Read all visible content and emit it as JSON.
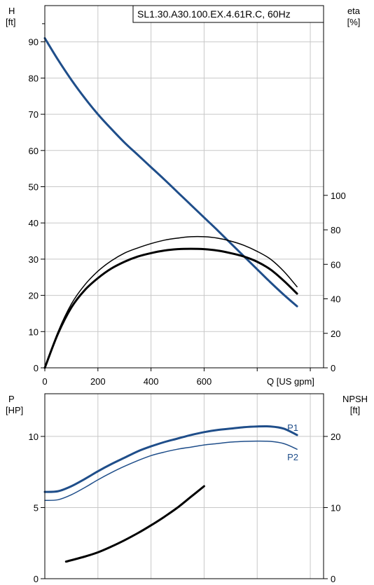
{
  "chart_data": [
    {
      "type": "line",
      "title": "SL1.30.A30.100.EX.4.61R.C, 60Hz",
      "xlabel": "Q [US gpm]",
      "ylabel_left": [
        "H",
        "[ft]"
      ],
      "ylabel_right": [
        "eta",
        "[%]"
      ],
      "xlim": [
        0,
        1050
      ],
      "ylim_left": [
        0,
        100
      ],
      "ylim_right": [
        0,
        210
      ],
      "x_ticks": [
        0,
        200,
        400,
        600
      ],
      "x_tick_labels": [
        "0",
        "200",
        "400",
        "600"
      ],
      "y_ticks_left": [
        0,
        10,
        20,
        30,
        40,
        50,
        60,
        70,
        80,
        90
      ],
      "y_ticks_right": [
        0,
        20,
        40,
        60,
        80,
        100
      ],
      "grid": true,
      "series": [
        {
          "axis": "left",
          "color": "#1f4e8a",
          "width": 3,
          "x": [
            0,
            50,
            100,
            150,
            200,
            250,
            300,
            350,
            400,
            450,
            500,
            550,
            600,
            650,
            700,
            750,
            800,
            850,
            900,
            950
          ],
          "y": [
            91,
            85,
            79.5,
            74.5,
            70,
            66,
            62.2,
            58.8,
            55.4,
            52,
            48.5,
            45,
            41.5,
            38,
            34.4,
            30.8,
            27.2,
            23.6,
            20.2,
            17
          ]
        },
        {
          "axis": "right",
          "color": "#000000",
          "width": 1.5,
          "x": [
            0,
            50,
            100,
            150,
            200,
            250,
            300,
            350,
            400,
            450,
            500,
            550,
            600,
            650,
            700,
            750,
            800,
            850,
            900,
            950
          ],
          "y": [
            0,
            21,
            37,
            48,
            56,
            62,
            66.5,
            69.5,
            72,
            74,
            75.2,
            76,
            76,
            75.2,
            73.5,
            71,
            67.5,
            63,
            56,
            47
          ]
        },
        {
          "axis": "right",
          "color": "#000000",
          "width": 3,
          "x": [
            0,
            50,
            100,
            150,
            200,
            250,
            300,
            350,
            400,
            450,
            500,
            550,
            600,
            650,
            700,
            750,
            800,
            850,
            900,
            950
          ],
          "y": [
            0,
            20,
            35,
            45,
            52,
            57.5,
            61.5,
            64.5,
            66.5,
            68,
            68.8,
            69,
            68.8,
            68,
            66.5,
            64.5,
            61.5,
            57,
            50.5,
            43
          ]
        }
      ]
    },
    {
      "type": "line",
      "xlim": [
        0,
        1050
      ],
      "ylabel_left": [
        "P",
        "[HP]"
      ],
      "ylabel_right": [
        "NPSH",
        "[ft]"
      ],
      "ylim_left": [
        0,
        13
      ],
      "ylim_right": [
        0,
        26
      ],
      "y_ticks_left": [
        0,
        5,
        10
      ],
      "y_ticks_right": [
        0,
        10,
        20
      ],
      "grid": true,
      "series": [
        {
          "name": "P1",
          "axis": "left",
          "color": "#1f4e8a",
          "width": 3,
          "x": [
            0,
            50,
            100,
            150,
            200,
            250,
            300,
            350,
            400,
            450,
            500,
            550,
            600,
            650,
            700,
            750,
            800,
            850,
            900,
            950
          ],
          "y": [
            6.1,
            6.15,
            6.5,
            7.0,
            7.55,
            8.05,
            8.5,
            8.95,
            9.3,
            9.6,
            9.85,
            10.1,
            10.3,
            10.45,
            10.55,
            10.65,
            10.7,
            10.7,
            10.55,
            10.1
          ]
        },
        {
          "name": "P2",
          "axis": "left",
          "color": "#1f4e8a",
          "width": 1.5,
          "x": [
            0,
            50,
            100,
            150,
            200,
            250,
            300,
            350,
            400,
            450,
            500,
            550,
            600,
            650,
            700,
            750,
            800,
            850,
            900,
            950
          ],
          "y": [
            5.5,
            5.55,
            5.9,
            6.4,
            6.95,
            7.45,
            7.9,
            8.3,
            8.65,
            8.9,
            9.1,
            9.25,
            9.4,
            9.5,
            9.6,
            9.65,
            9.67,
            9.65,
            9.5,
            9.1
          ]
        },
        {
          "axis": "right",
          "color": "#000000",
          "width": 3,
          "x": [
            80,
            150,
            200,
            250,
            300,
            350,
            400,
            450,
            500,
            550,
            600
          ],
          "y": [
            2.4,
            3.1,
            3.7,
            4.5,
            5.4,
            6.4,
            7.5,
            8.7,
            10,
            11.5,
            13
          ]
        }
      ]
    }
  ]
}
